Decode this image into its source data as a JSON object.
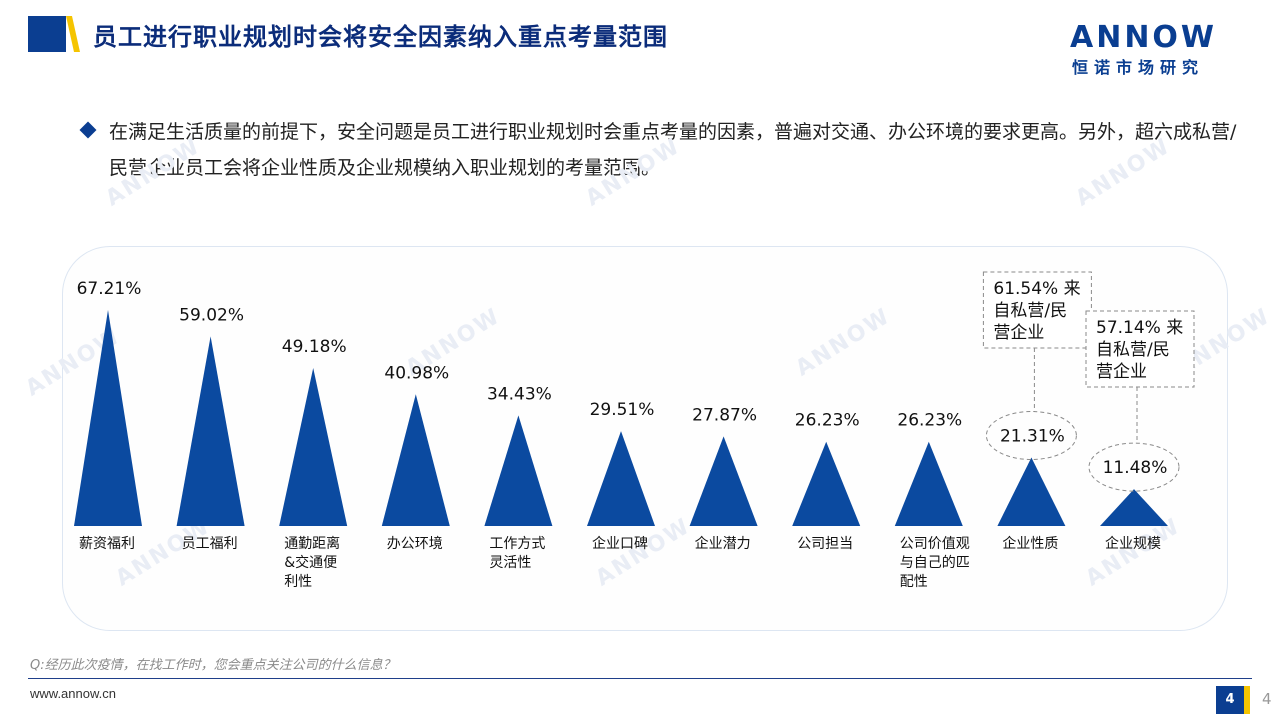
{
  "header": {
    "title": "员工进行职业规划时会将安全因素纳入重点考量范围",
    "logo_word": "ANNOW",
    "logo_sub": "恒诺市场研究"
  },
  "bullet": {
    "text": "在满足生活质量的前提下，安全问题是员工进行职业规划时会重点考量的因素，普遍对交通、办公环境的要求更高。另外，超六成私营/民营企业员工会将企业性质及企业规模纳入职业规划的考量范围。"
  },
  "chart_data": {
    "type": "bar",
    "categories": [
      "薪资福利",
      "员工福利",
      "通勤距离&交通便利性",
      "办公环境",
      "工作方式灵活性",
      "企业口碑",
      "企业潜力",
      "公司担当",
      "公司价值观与自己的匹配性",
      "企业性质",
      "企业规模"
    ],
    "category_lines": [
      [
        "薪资福利"
      ],
      [
        "员工福利"
      ],
      [
        "通勤距离",
        "&交通便",
        "利性"
      ],
      [
        "办公环境"
      ],
      [
        "工作方式",
        "灵活性"
      ],
      [
        "企业口碑"
      ],
      [
        "企业潜力"
      ],
      [
        "公司担当"
      ],
      [
        "公司价值观",
        "与自己的匹",
        "配性"
      ],
      [
        "企业性质"
      ],
      [
        "企业规模"
      ]
    ],
    "values": [
      67.21,
      59.02,
      49.18,
      40.98,
      34.43,
      29.51,
      27.87,
      26.23,
      26.23,
      21.31,
      11.48
    ],
    "value_labels": [
      "67.21%",
      "59.02%",
      "49.18%",
      "40.98%",
      "34.43%",
      "29.51%",
      "27.87%",
      "26.23%",
      "26.23%",
      "21.31%",
      "11.48%"
    ],
    "bar_color": "#0b4aa0",
    "annotations": [
      {
        "category_index": 9,
        "lines": [
          "61.54% 来",
          "自私营/民",
          "营企业"
        ]
      },
      {
        "category_index": 10,
        "lines": [
          "57.14% 来",
          "自私营/民",
          "营企业"
        ]
      }
    ]
  },
  "footer": {
    "question": "Q:经历此次疫情，在找工作时，您会重点关注公司的什么信息？",
    "website": "www.annow.cn",
    "page_box": "4",
    "page_plain": "4"
  },
  "colors": {
    "brand_blue": "#0b3e91",
    "accent_yellow": "#f5c400"
  },
  "watermark_text": "ANNOW"
}
